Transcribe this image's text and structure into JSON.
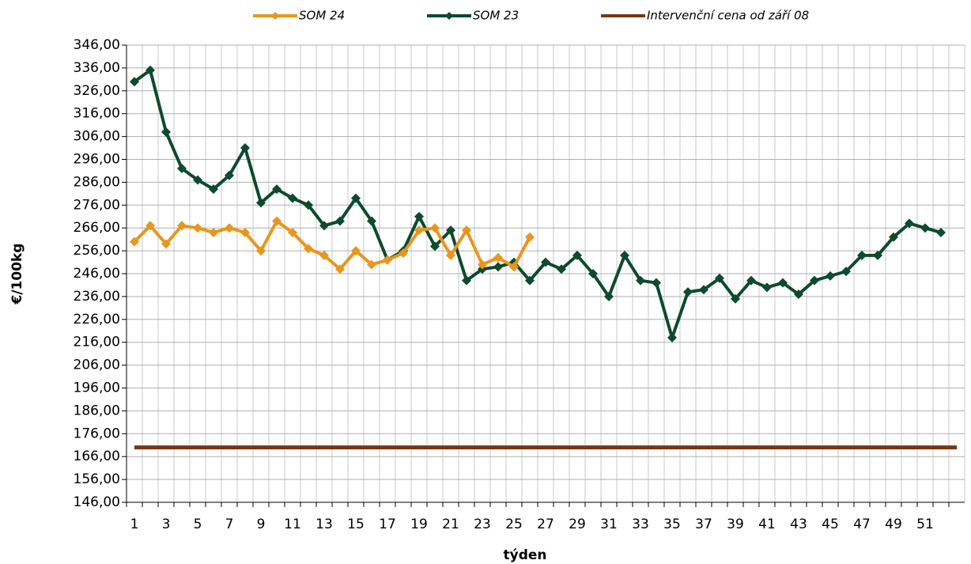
{
  "chart_data": {
    "type": "line",
    "x_label": "týden",
    "y_label": "€/100kg",
    "categories": [
      "1",
      null,
      "3",
      null,
      "5",
      null,
      "7",
      null,
      "9",
      null,
      "11",
      null,
      "13",
      null,
      "15",
      null,
      "17",
      null,
      "19",
      null,
      "21",
      null,
      "23",
      null,
      "25",
      null,
      "27",
      null,
      "29",
      null,
      "31",
      null,
      "33",
      null,
      "35",
      null,
      "37",
      null,
      "39",
      null,
      "41",
      null,
      "43",
      null,
      "45",
      null,
      "47",
      null,
      "49",
      null,
      "51",
      null,
      null
    ],
    "series": [
      {
        "name": "SOM 24",
        "color": "#e8961e",
        "marker": "diamond",
        "values": [
          260,
          267,
          259,
          267,
          266,
          264,
          266,
          264,
          256,
          269,
          264,
          257,
          254,
          248,
          256,
          250,
          252,
          255,
          265,
          266,
          254,
          265,
          250,
          253,
          249,
          262,
          null,
          null,
          null,
          null,
          null,
          null,
          null,
          null,
          null,
          null,
          null,
          null,
          null,
          null,
          null,
          null,
          null,
          null,
          null,
          null,
          null,
          null,
          null,
          null,
          null,
          null,
          null
        ]
      },
      {
        "name": "SOM 23",
        "color": "#0d4a2e",
        "marker": "diamond",
        "values": [
          330,
          335,
          308,
          292,
          287,
          283,
          289,
          301,
          277,
          283,
          279,
          276,
          267,
          269,
          279,
          269,
          252,
          256,
          271,
          258,
          265,
          243,
          248,
          249,
          251,
          243,
          251,
          248,
          254,
          246,
          236,
          254,
          243,
          242,
          218,
          238,
          239,
          244,
          235,
          243,
          240,
          242,
          237,
          243,
          245,
          247,
          254,
          254,
          262,
          268,
          266,
          264,
          null
        ]
      },
      {
        "name": "Intervenční cena od září 08",
        "color": "#7a3516",
        "marker": "none",
        "values": [
          170,
          170,
          170,
          170,
          170,
          170,
          170,
          170,
          170,
          170,
          170,
          170,
          170,
          170,
          170,
          170,
          170,
          170,
          170,
          170,
          170,
          170,
          170,
          170,
          170,
          170,
          170,
          170,
          170,
          170,
          170,
          170,
          170,
          170,
          170,
          170,
          170,
          170,
          170,
          170,
          170,
          170,
          170,
          170,
          170,
          170,
          170,
          170,
          170,
          170,
          170,
          170,
          170
        ]
      }
    ],
    "ylim": [
      146,
      346
    ],
    "yticks": [
      {
        "value": 146,
        "label": "146,00"
      },
      {
        "value": 156,
        "label": "156,00"
      },
      {
        "value": 166,
        "label": "166,00"
      },
      {
        "value": 176,
        "label": "176,00"
      },
      {
        "value": 186,
        "label": "186,00"
      },
      {
        "value": 196,
        "label": "196,00"
      },
      {
        "value": 206,
        "label": "206,00"
      },
      {
        "value": 216,
        "label": "216,00"
      },
      {
        "value": 226,
        "label": "226,00"
      },
      {
        "value": 236,
        "label": "236,00"
      },
      {
        "value": 246,
        "label": "246,00"
      },
      {
        "value": 256,
        "label": "256,00"
      },
      {
        "value": 266,
        "label": "266,00"
      },
      {
        "value": 276,
        "label": "276,00"
      },
      {
        "value": 286,
        "label": "286,00"
      },
      {
        "value": 296,
        "label": "296,00"
      },
      {
        "value": 306,
        "label": "306,00"
      },
      {
        "value": 316,
        "label": "316,00"
      },
      {
        "value": 326,
        "label": "326,00"
      },
      {
        "value": 336,
        "label": "336,00"
      },
      {
        "value": 346,
        "label": "346,00"
      }
    ],
    "grid": true,
    "legend": "top"
  }
}
